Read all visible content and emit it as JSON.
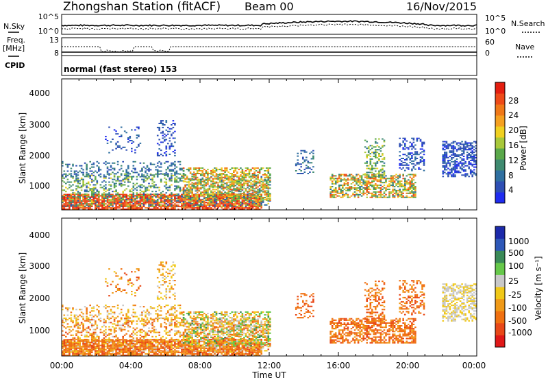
{
  "header": {
    "station": "Zhongshan Station (fitACF)",
    "beam": "Beam 00",
    "date": "16/Nov/2015"
  },
  "panels": {
    "nsky": {
      "left_label": "N.Sky",
      "right_label": "N.Search",
      "left_ticks": [
        "10^5",
        "10^0"
      ],
      "right_ticks": [
        "10^5",
        "10^0"
      ]
    },
    "freq": {
      "left_label_1": "Freq.",
      "left_label_2": "[MHz]",
      "left_ticks": [
        "13",
        "8"
      ],
      "right_label": "Nave",
      "right_ticks": [
        "60",
        "0"
      ]
    },
    "cpid": {
      "label": "CPID",
      "value": "normal (fast stereo) 153"
    }
  },
  "chart_data": [
    {
      "type": "heatmap",
      "title": "Power",
      "xlabel": "",
      "ylabel": "Slant Range [km]",
      "y_ticks": [
        "1000",
        "2000",
        "3000",
        "4000"
      ],
      "ylim": [
        200,
        4600
      ],
      "xlim_hours": [
        0,
        24
      ],
      "colorbar": {
        "label": "Power [dB]",
        "ticks": [
          "4",
          "8",
          "12",
          "16",
          "20",
          "24",
          "28"
        ],
        "colors": [
          "#1f2cf0",
          "#2e4fb4",
          "#2f6fa0",
          "#3f8a70",
          "#5aa84a",
          "#a8c83a",
          "#f0d020",
          "#f5a020",
          "#f07818",
          "#ee4a18",
          "#e41e10"
        ]
      }
    },
    {
      "type": "heatmap",
      "title": "Velocity",
      "xlabel": "Time UT",
      "ylabel": "Slant Range [km]",
      "x_ticks": [
        "00:00",
        "04:00",
        "08:00",
        "12:00",
        "16:00",
        "20:00",
        "00:00"
      ],
      "y_ticks": [
        "1000",
        "2000",
        "3000",
        "4000"
      ],
      "ylim": [
        200,
        4600
      ],
      "xlim_hours": [
        0,
        24
      ],
      "colorbar": {
        "label": "Velocity [m s⁻¹]",
        "ticks": [
          "1000",
          "500",
          "100",
          "25",
          "-25",
          "-100",
          "-500",
          "-1000"
        ],
        "colors": [
          "#1c2aaa",
          "#2e58b8",
          "#3a8a58",
          "#66c84a",
          "#c8c8c8",
          "#f0c818",
          "#f09a18",
          "#f07010",
          "#e84818",
          "#e01818"
        ]
      }
    }
  ]
}
